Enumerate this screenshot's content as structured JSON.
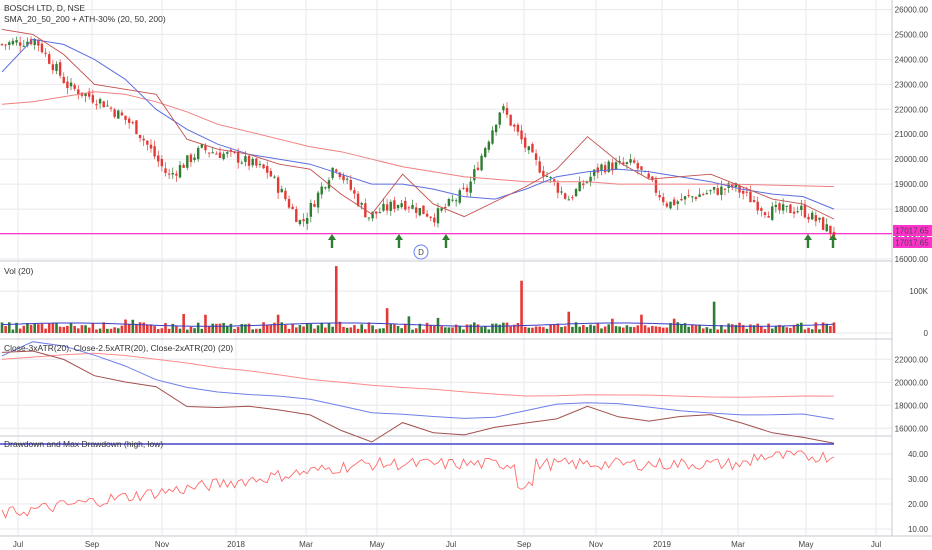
{
  "colors": {
    "up": "#2e7d32",
    "down": "#e53935",
    "sma20": "#c0504d",
    "sma50": "#5b6fe0",
    "sma200": "#f08080",
    "magenta": "#ff33cc",
    "vol_ma": "#3b3bc8",
    "grid": "#e8e8ee",
    "dd_line": "#ff6b6b",
    "maxdd_line": "#4444cc",
    "atr3": "#ff8a8a",
    "atr25": "#6f7fe8",
    "atr2": "#a0504d",
    "arrow": "#2e7d32"
  },
  "price_pane": {
    "title_line1": "BOSCH LTD, D, NSE",
    "title_line2": "SMA_20_50_200 + ATH-30% (20, 50, 200)",
    "ticks": [
      "26000.00",
      "25000.00",
      "24000.00",
      "23000.00",
      "22000.00",
      "21000.00",
      "20000.00",
      "19000.00",
      "18000.00",
      "17000.00",
      "16000.00"
    ],
    "tick_values": [
      26000,
      25000,
      24000,
      23000,
      22000,
      21000,
      20000,
      19000,
      18000,
      17000,
      16000
    ],
    "ath_level": 17017.65,
    "label_ath": "17017.65",
    "label_last": "17017.65",
    "range": [
      16000,
      26300
    ],
    "marker_label": "D"
  },
  "vol_pane": {
    "title": "Vol (20)",
    "ticks": [
      "100K",
      "0"
    ],
    "tick_values": [
      100000,
      0
    ],
    "range": [
      0,
      165000
    ]
  },
  "atr_pane": {
    "title": "Close-3xATR(20), Close-2.5xATR(20), Close-2xATR(20) (20)",
    "ticks": [
      "22000.00",
      "20000.00",
      "18000.00",
      "16000.00"
    ],
    "tick_values": [
      22000,
      20000,
      18000,
      16000
    ],
    "range": [
      15500,
      23500
    ]
  },
  "dd_pane": {
    "title": "Drawdown and Max Drawdown (high, low)",
    "ticks": [
      "40.00",
      "30.00",
      "20.00",
      "10.00"
    ],
    "tick_values": [
      40,
      30,
      20,
      10
    ],
    "range": [
      8,
      46
    ],
    "max_dd": 44
  },
  "x_axis": {
    "labels": [
      "Jul",
      "Sep",
      "Nov",
      "2018",
      "Mar",
      "May",
      "Jul",
      "Sep",
      "Nov",
      "2019",
      "Mar",
      "May",
      "Jul"
    ]
  },
  "chart_data": [
    {
      "type": "candlestick",
      "sample_closes": [
        {
          "date": "2017-07",
          "close": 24600
        },
        {
          "date": "2017-08",
          "close": 24800
        },
        {
          "date": "2017-08-20",
          "close": 22900
        },
        {
          "date": "2017-09",
          "close": 22300
        },
        {
          "date": "2017-10",
          "close": 21300
        },
        {
          "date": "2017-11",
          "close": 19300
        },
        {
          "date": "2017-12",
          "close": 20400
        },
        {
          "date": "2018-01",
          "close": 20100
        },
        {
          "date": "2018-02",
          "close": 19500
        },
        {
          "date": "2018-03",
          "close": 17400
        },
        {
          "date": "2018-04",
          "close": 19800
        },
        {
          "date": "2018-05",
          "close": 17700
        },
        {
          "date": "2018-06",
          "close": 18300
        },
        {
          "date": "2018-07",
          "close": 17700
        },
        {
          "date": "2018-08",
          "close": 18800
        },
        {
          "date": "2018-08-25",
          "close": 22100
        },
        {
          "date": "2018-09",
          "close": 19900
        },
        {
          "date": "2018-10",
          "close": 18400
        },
        {
          "date": "2018-11",
          "close": 19700
        },
        {
          "date": "2018-12",
          "close": 19800
        },
        {
          "date": "2019-01",
          "close": 18200
        },
        {
          "date": "2019-02",
          "close": 18600
        },
        {
          "date": "2019-03",
          "close": 18900
        },
        {
          "date": "2019-04",
          "close": 17900
        },
        {
          "date": "2019-05",
          "close": 18000
        },
        {
          "date": "2019-05-28",
          "close": 17017.65
        }
      ]
    },
    {
      "type": "line",
      "series": [
        {
          "values": [
            25200,
            25000,
            24200,
            23000,
            22800,
            22600,
            20800,
            20400,
            20200,
            19800,
            19600,
            18600,
            17800,
            19400,
            18200,
            17700,
            18300,
            18900,
            19600,
            20900,
            19900,
            19200,
            19300,
            19400,
            18900,
            18400,
            18200,
            17600
          ]
        },
        {
          "values": [
            23500,
            24800,
            24600,
            24000,
            23200,
            22000,
            21200,
            20600,
            20200,
            20000,
            19800,
            19400,
            19000,
            19000,
            18800,
            18500,
            18400,
            18800,
            19300,
            19500,
            19600,
            19500,
            19300,
            19100,
            18800,
            18600,
            18500,
            18000
          ]
        },
        {
          "values": [
            22200,
            22300,
            22500,
            22700,
            22600,
            22300,
            21900,
            21400,
            21100,
            20800,
            20500,
            20300,
            20000,
            19700,
            19500,
            19300,
            19200,
            19100,
            19100,
            19100,
            19000,
            19000,
            19000,
            19000,
            18990,
            18960,
            18930,
            18900
          ]
        }
      ]
    }
  ]
}
